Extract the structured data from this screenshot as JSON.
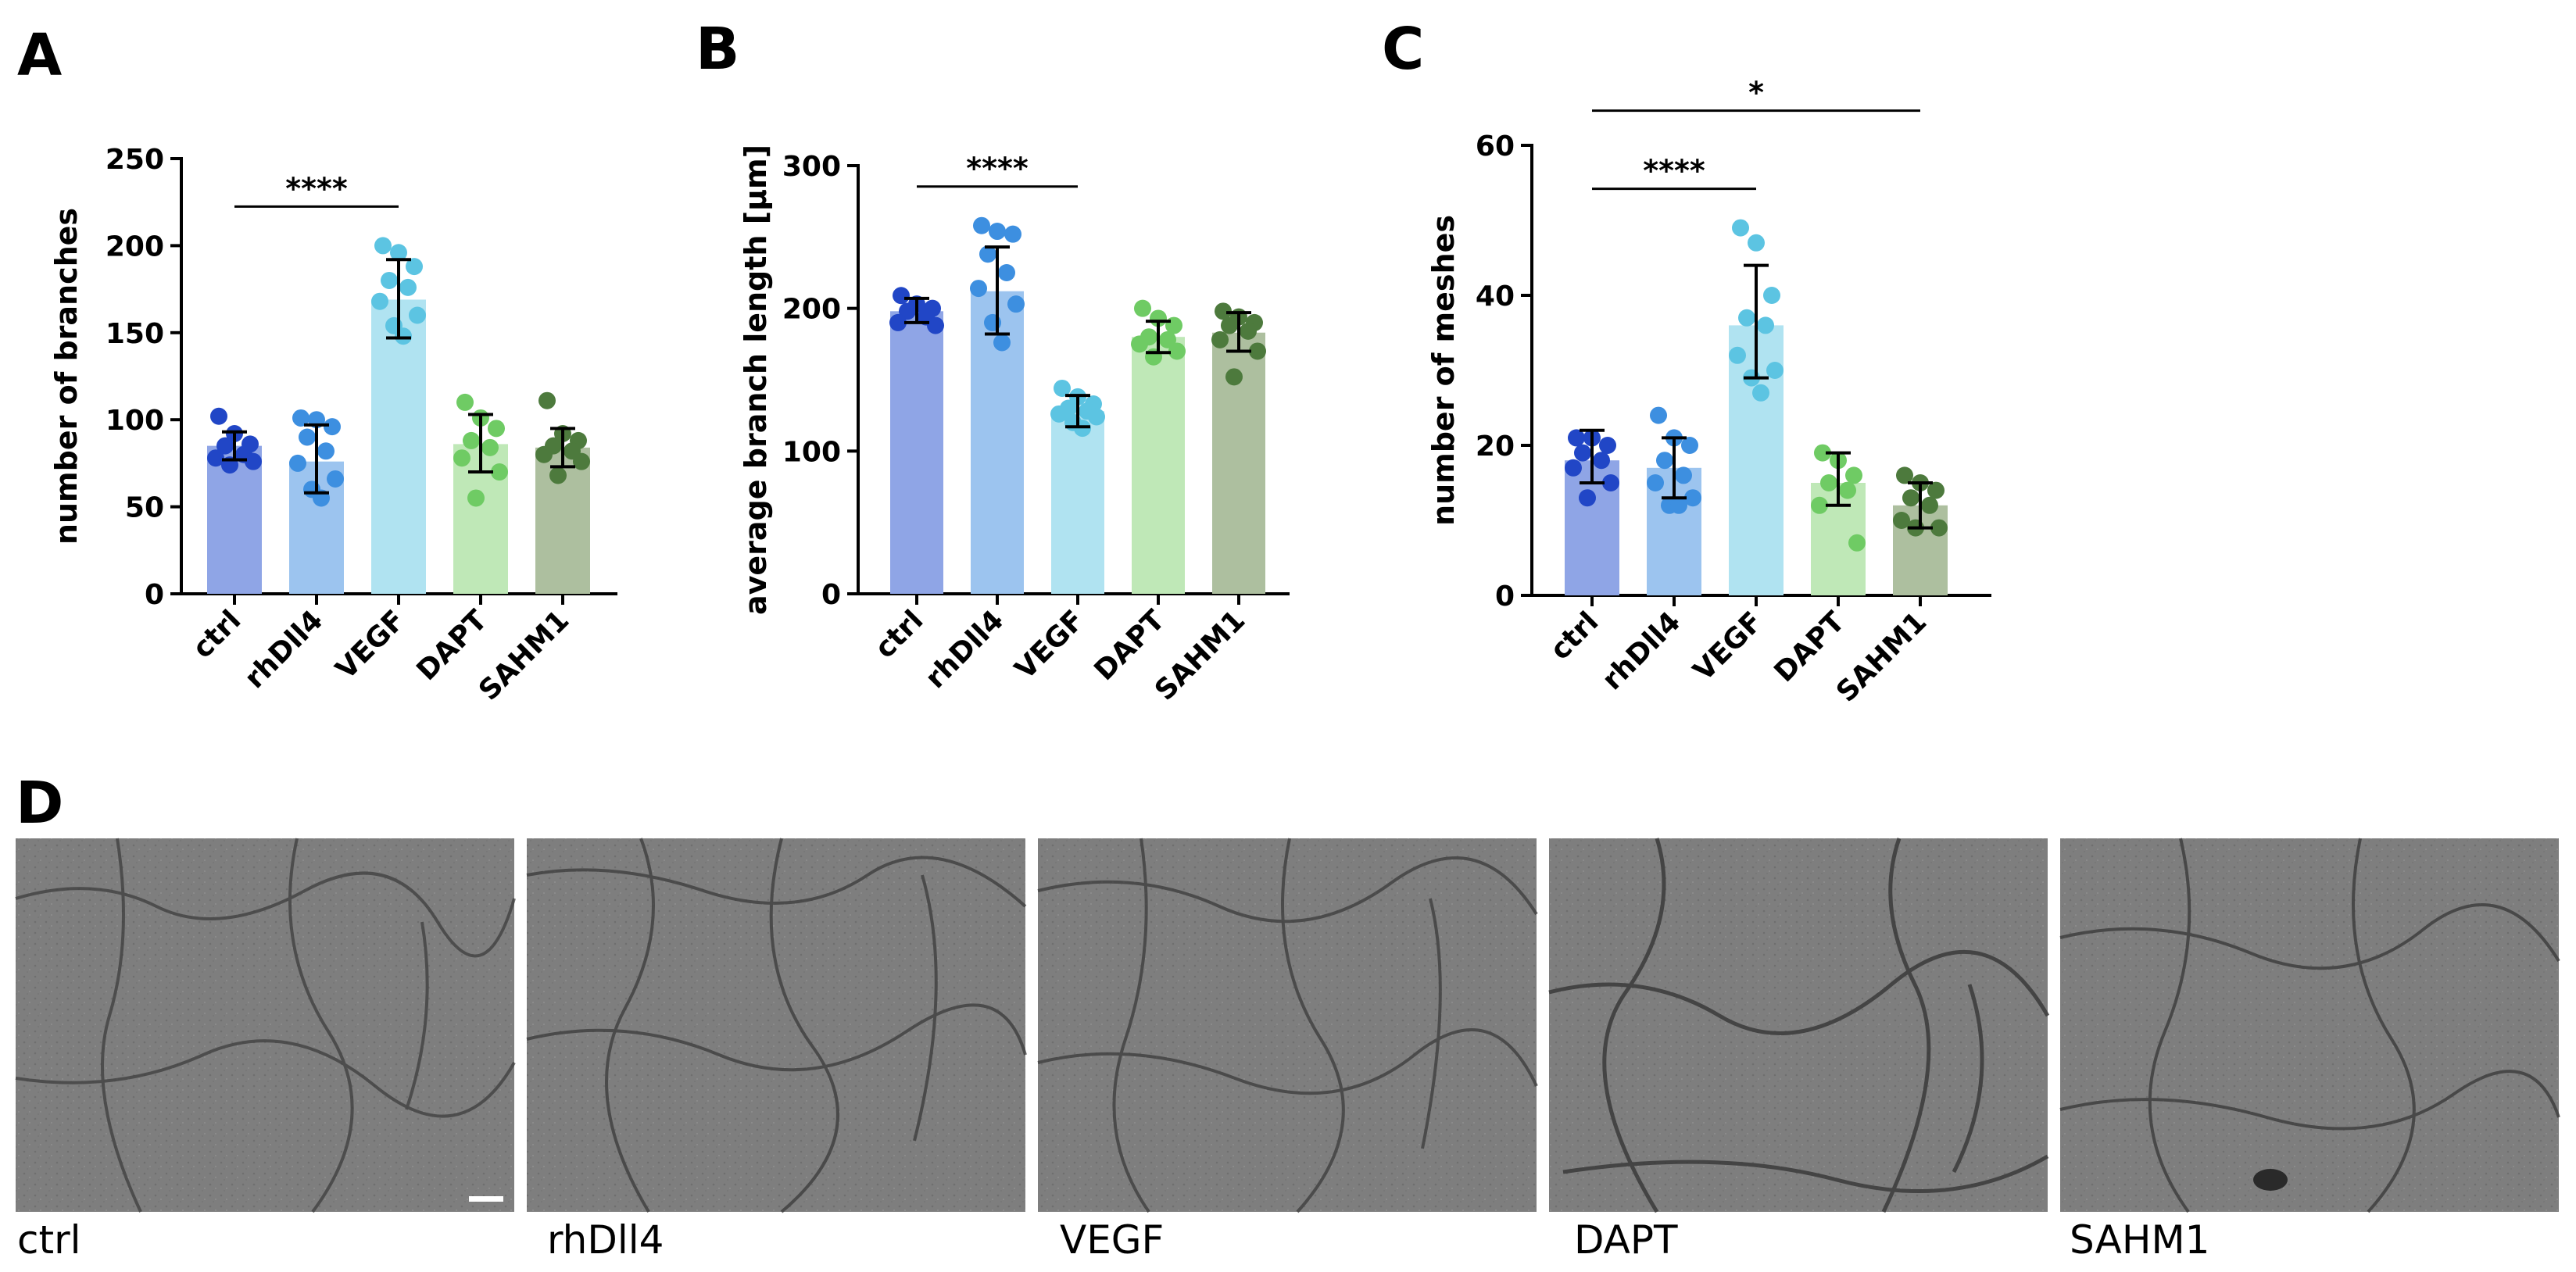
{
  "figure": {
    "panel_letters": [
      "A",
      "B",
      "C",
      "D"
    ],
    "micrograph_captions": [
      "ctrl",
      "rhDll4",
      "VEGF",
      "DAPT",
      "SAHM1"
    ]
  },
  "colors": {
    "ctrl": "#2146c6",
    "rhDll4": "#3d8fe0",
    "VEGF": "#5cc4e2",
    "DAPT": "#6fcb64",
    "SAHM1": "#4d7a3d",
    "ctrl_bar": "#8fa5e6",
    "rhDll4_bar": "#9cc4ef",
    "VEGF_bar": "#b0e3f1",
    "DAPT_bar": "#bfe8b7",
    "SAHM1_bar": "#adbf9f",
    "micrograph_bg": "#7d7d7d"
  },
  "chart_data": [
    {
      "panel": "A",
      "type": "bar",
      "ylabel": "number of branches",
      "categories": [
        "ctrl",
        "rhDll4",
        "VEGF",
        "DAPT",
        "SAHM1"
      ],
      "values": [
        85,
        76,
        169,
        86,
        84
      ],
      "error_low": [
        77,
        58,
        147,
        70,
        73
      ],
      "error_high": [
        93,
        97,
        192,
        103,
        95
      ],
      "points": [
        [
          102,
          92,
          86,
          85,
          80,
          78,
          76,
          74
        ],
        [
          101,
          100,
          96,
          90,
          82,
          75,
          66,
          60,
          55
        ],
        [
          200,
          196,
          188,
          180,
          176,
          168,
          160,
          154,
          148
        ],
        [
          110,
          101,
          95,
          88,
          84,
          78,
          70,
          55
        ],
        [
          111,
          92,
          88,
          85,
          82,
          80,
          76,
          68
        ]
      ],
      "ylim": [
        0,
        250
      ],
      "yticks": [
        0,
        50,
        100,
        150,
        200,
        250
      ],
      "significance": [
        {
          "from": 0,
          "to": 2,
          "label": "****"
        }
      ]
    },
    {
      "panel": "B",
      "type": "bar",
      "ylabel": "average branch length [µm]",
      "categories": [
        "ctrl",
        "rhDll4",
        "VEGF",
        "DAPT",
        "SAHM1"
      ],
      "values": [
        198,
        212,
        128,
        180,
        183
      ],
      "error_low": [
        190,
        182,
        117,
        169,
        170
      ],
      "error_high": [
        207,
        243,
        139,
        191,
        197
      ],
      "points": [
        [
          209,
          203,
          200,
          198,
          194,
          190,
          188
        ],
        [
          258,
          254,
          252,
          238,
          225,
          214,
          203,
          190,
          176
        ],
        [
          144,
          138,
          133,
          130,
          128,
          126,
          124,
          120,
          116
        ],
        [
          200,
          193,
          188,
          180,
          178,
          175,
          170,
          166
        ],
        [
          198,
          194,
          190,
          188,
          184,
          178,
          170,
          152
        ]
      ],
      "ylim": [
        0,
        300
      ],
      "yticks": [
        0,
        100,
        200,
        300
      ],
      "significance": [
        {
          "from": 0,
          "to": 2,
          "label": "****"
        }
      ]
    },
    {
      "panel": "C",
      "type": "bar",
      "ylabel": "number of meshes",
      "categories": [
        "ctrl",
        "rhDll4",
        "VEGF",
        "DAPT",
        "SAHM1"
      ],
      "values": [
        18,
        17,
        36,
        15,
        12
      ],
      "error_low": [
        15,
        13,
        29,
        12,
        9
      ],
      "error_high": [
        22,
        21,
        44,
        19,
        15
      ],
      "points": [
        [
          21,
          21,
          20,
          19,
          18,
          17,
          15,
          13
        ],
        [
          24,
          21,
          20,
          18,
          16,
          15,
          13,
          12,
          12
        ],
        [
          49,
          47,
          40,
          37,
          36,
          32,
          30,
          29,
          27
        ],
        [
          19,
          18,
          16,
          15,
          14,
          12,
          7
        ],
        [
          16,
          15,
          14,
          13,
          12,
          10,
          9,
          9
        ]
      ],
      "ylim": [
        0,
        60
      ],
      "yticks": [
        0,
        20,
        40,
        60
      ],
      "significance": [
        {
          "from": 0,
          "to": 2,
          "label": "****"
        },
        {
          "from": 0,
          "to": 4,
          "label": "*"
        }
      ]
    }
  ]
}
